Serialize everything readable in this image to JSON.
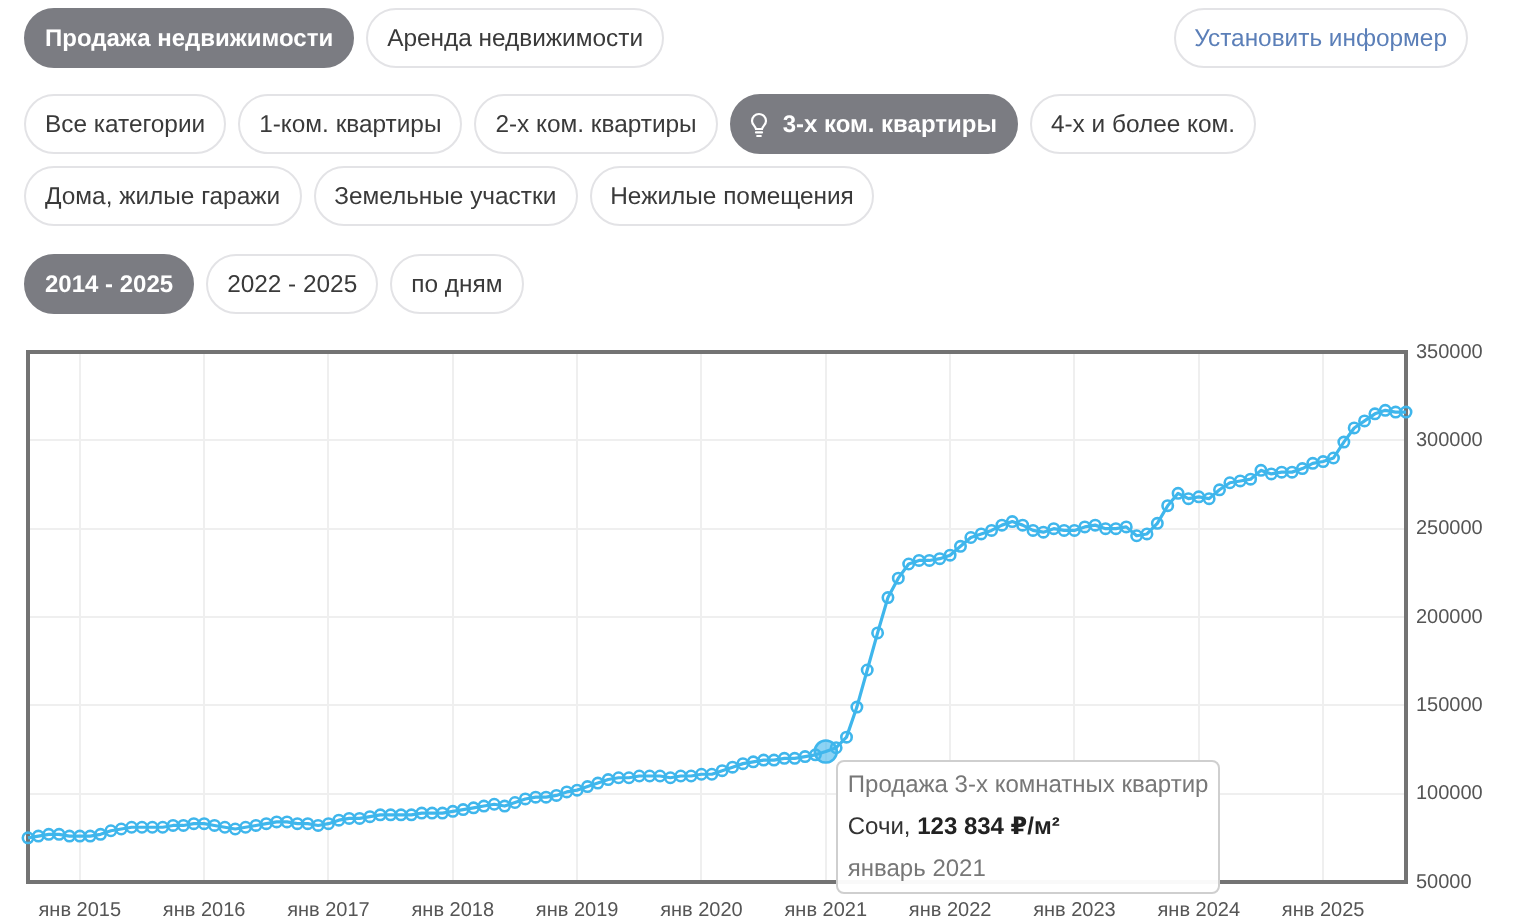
{
  "chart_data": {
    "type": "line",
    "x": [
      "2014-08",
      "2014-09",
      "2014-10",
      "2014-11",
      "2014-12",
      "2015-01",
      "2015-02",
      "2015-03",
      "2015-04",
      "2015-05",
      "2015-06",
      "2015-07",
      "2015-08",
      "2015-09",
      "2015-10",
      "2015-11",
      "2015-12",
      "2016-01",
      "2016-02",
      "2016-03",
      "2016-04",
      "2016-05",
      "2016-06",
      "2016-07",
      "2016-08",
      "2016-09",
      "2016-10",
      "2016-11",
      "2016-12",
      "2017-01",
      "2017-02",
      "2017-03",
      "2017-04",
      "2017-05",
      "2017-06",
      "2017-07",
      "2017-08",
      "2017-09",
      "2017-10",
      "2017-11",
      "2017-12",
      "2018-01",
      "2018-02",
      "2018-03",
      "2018-04",
      "2018-05",
      "2018-06",
      "2018-07",
      "2018-08",
      "2018-09",
      "2018-10",
      "2018-11",
      "2018-12",
      "2019-01",
      "2019-02",
      "2019-03",
      "2019-04",
      "2019-05",
      "2019-06",
      "2019-07",
      "2019-08",
      "2019-09",
      "2019-10",
      "2019-11",
      "2019-12",
      "2020-01",
      "2020-02",
      "2020-03",
      "2020-04",
      "2020-05",
      "2020-06",
      "2020-07",
      "2020-08",
      "2020-09",
      "2020-10",
      "2020-11",
      "2020-12",
      "2021-01",
      "2021-02",
      "2021-03",
      "2021-04",
      "2021-05",
      "2021-06",
      "2021-07",
      "2021-08",
      "2021-09",
      "2021-10",
      "2021-11",
      "2021-12",
      "2022-01",
      "2022-02",
      "2022-03",
      "2022-04",
      "2022-05",
      "2022-06",
      "2022-07",
      "2022-08",
      "2022-09",
      "2022-10",
      "2022-11",
      "2022-12",
      "2023-01",
      "2023-02",
      "2023-03",
      "2023-04",
      "2023-05",
      "2023-06",
      "2023-07",
      "2023-08",
      "2023-09",
      "2023-10",
      "2023-11",
      "2023-12",
      "2024-01",
      "2024-02",
      "2024-03",
      "2024-04",
      "2024-05",
      "2024-06",
      "2024-07",
      "2024-08",
      "2024-09",
      "2024-10",
      "2024-11",
      "2024-12",
      "2025-01",
      "2025-02",
      "2025-03",
      "2025-04",
      "2025-05",
      "2025-06",
      "2025-07",
      "2025-08",
      "2025-09"
    ],
    "series": [
      {
        "color": "#3fb6ec",
        "values": [
          75000,
          76000,
          77000,
          77000,
          76000,
          76000,
          76000,
          77000,
          79000,
          80000,
          81000,
          81000,
          81000,
          81000,
          82000,
          82000,
          83000,
          83000,
          82000,
          81000,
          80000,
          81000,
          82000,
          83000,
          84000,
          84000,
          83000,
          83000,
          82000,
          83000,
          85000,
          86000,
          86000,
          87000,
          88000,
          88000,
          88000,
          88000,
          89000,
          89000,
          89000,
          90000,
          91000,
          92000,
          93000,
          94000,
          93000,
          95000,
          97000,
          98000,
          98000,
          99000,
          101000,
          102000,
          104000,
          106000,
          108000,
          109000,
          109000,
          110000,
          110000,
          110000,
          109000,
          110000,
          110000,
          111000,
          111000,
          113000,
          115000,
          117000,
          118000,
          119000,
          119000,
          120000,
          120000,
          121000,
          122000,
          123834,
          126000,
          132000,
          149000,
          170000,
          191000,
          211000,
          222000,
          230000,
          232000,
          232000,
          233000,
          235000,
          240000,
          245000,
          247000,
          249000,
          252000,
          254000,
          252000,
          249000,
          248000,
          250000,
          249000,
          249000,
          251000,
          252000,
          250000,
          250000,
          251000,
          246000,
          247000,
          253000,
          263000,
          270000,
          267000,
          268000,
          267000,
          272000,
          276000,
          277000,
          278000,
          283000,
          281000,
          282000,
          282000,
          284000,
          287000,
          288000,
          290000,
          299000,
          307000,
          311000,
          315000,
          317000,
          316000,
          316000
        ]
      }
    ],
    "xlim": [
      "2014-08",
      "2025-09"
    ],
    "xticks": [
      {
        "value": "2015-01",
        "label": "янв 2015"
      },
      {
        "value": "2016-01",
        "label": "янв 2016"
      },
      {
        "value": "2017-01",
        "label": "янв 2017"
      },
      {
        "value": "2018-01",
        "label": "янв 2018"
      },
      {
        "value": "2019-01",
        "label": "янв 2019"
      },
      {
        "value": "2020-01",
        "label": "янв 2020"
      },
      {
        "value": "2021-01",
        "label": "янв 2021"
      },
      {
        "value": "2022-01",
        "label": "янв 2022"
      },
      {
        "value": "2023-01",
        "label": "янв 2023"
      },
      {
        "value": "2024-01",
        "label": "янв 2024"
      },
      {
        "value": "2025-01",
        "label": "янв 2025"
      }
    ],
    "ylim": [
      50000,
      350000
    ],
    "yticks": [
      50000,
      100000,
      150000,
      200000,
      250000,
      300000,
      350000
    ],
    "grid": true,
    "marker": "circle",
    "annotations": [
      "Продажа недвижимости",
      "Аренда недвижимости",
      "Установить информер",
      "Все категории",
      "1-ком. квартиры",
      "2-х ком. квартиры",
      "3-х ком. квартиры",
      "4-х и более ком.",
      "Дома, жилые гаражи",
      "Земельные участки",
      "Нежилые помещения",
      "2014 - 2025",
      "2022 - 2025",
      "по дням",
      {
        "text": "Продажа 3-х комнатных квартир\nСочи, 123 834 ₽/м²\nянварь 2021",
        "x": "2021-01",
        "y": 123834
      }
    ]
  }
}
